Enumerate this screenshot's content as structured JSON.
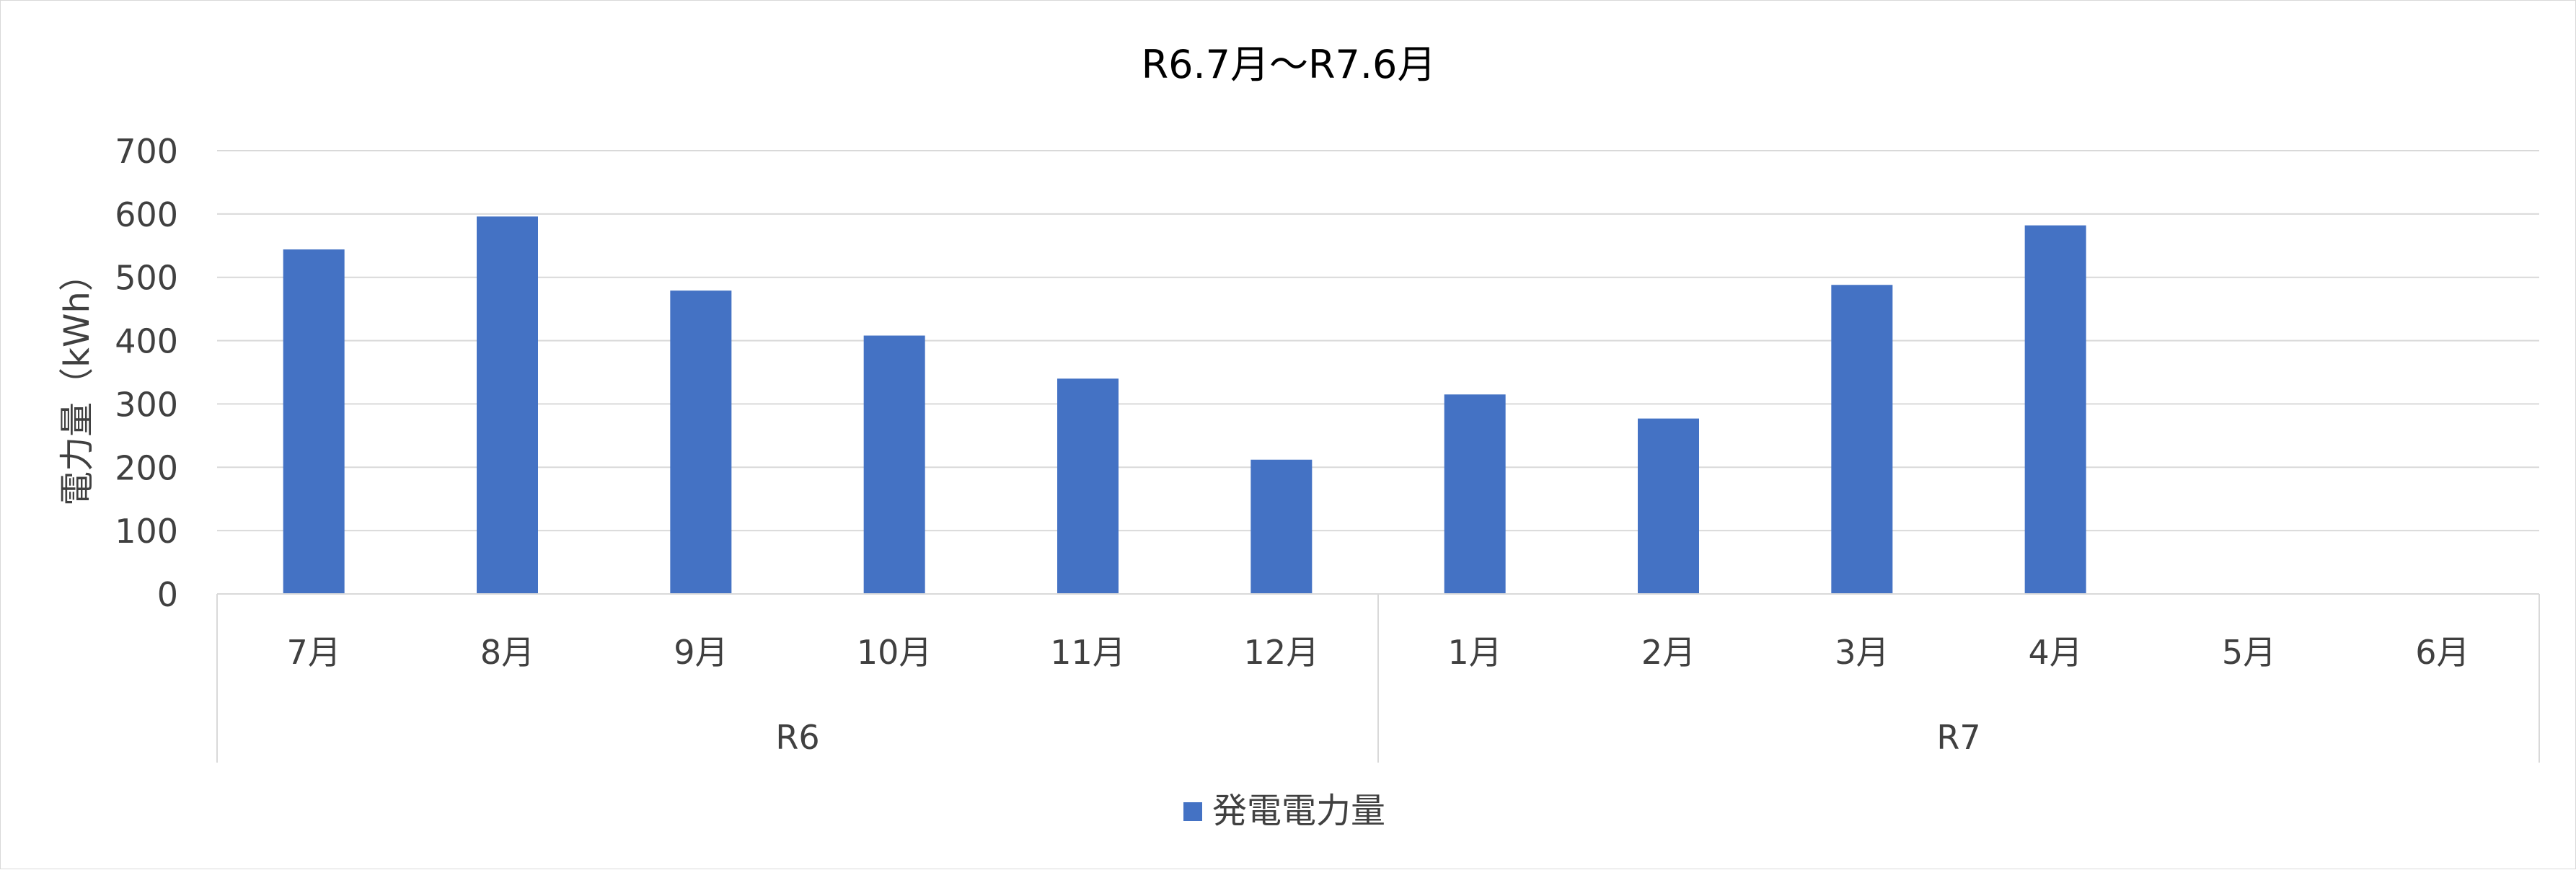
{
  "chart_data": {
    "type": "bar",
    "title": "R6.7月～R7.6月",
    "xlabel": "",
    "ylabel": "電力量（kWh）",
    "ylim": [
      0,
      700
    ],
    "yticks": [
      "0",
      "100",
      "200",
      "300",
      "400",
      "500",
      "600",
      "700"
    ],
    "grid": true,
    "legend_position": "bottom",
    "categories": [
      "7月",
      "8月",
      "9月",
      "10月",
      "11月",
      "12月",
      "1月",
      "2月",
      "3月",
      "4月",
      "5月",
      "6月"
    ],
    "groups": [
      {
        "label": "R6",
        "span": 6
      },
      {
        "label": "R7",
        "span": 6
      }
    ],
    "series": [
      {
        "name": "発電電力量",
        "color": "#4472C4",
        "values": [
          544,
          596,
          479,
          408,
          340,
          212,
          315,
          277,
          488,
          582,
          null,
          null
        ]
      }
    ]
  }
}
